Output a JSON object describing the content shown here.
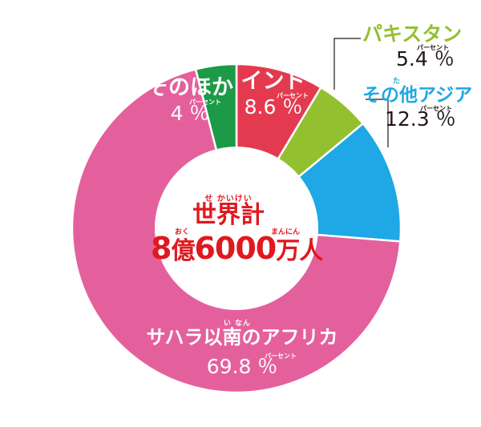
{
  "colors": {
    "sub_saharan": "#e4609c",
    "india": "#e43a4f",
    "pakistan": "#93c02f",
    "other_asia": "#1ea8e6",
    "other": "#1c9a48",
    "center_text": "#e0181f",
    "white": "#ffffff",
    "dark": "#231815"
  },
  "chart_data": {
    "type": "pie",
    "donut": true,
    "center": {
      "ruby": "せ かいけい",
      "title": "世界計",
      "total_prefix": "8",
      "oku": "億",
      "oku_ruby": "おく",
      "total_mid": "6000",
      "man_nin": "万人",
      "man_nin_ruby": "まんにん"
    },
    "unit_ruby": "パーセント",
    "unit": "％",
    "slices": [
      {
        "name": "サハラ以南のアフリカ",
        "ruby": "い なん",
        "value": 69.8,
        "value_text": "69.8 ％",
        "color": "#e4609c"
      },
      {
        "name": "インド",
        "ruby": "",
        "value": 8.6,
        "value_text": "8.6 ％",
        "color": "#e43a4f"
      },
      {
        "name": "パキスタン",
        "ruby": "",
        "value": 5.4,
        "value_text": "5.4 ％",
        "color": "#93c02f"
      },
      {
        "name": "その他アジア",
        "ruby": "た",
        "value": 12.3,
        "value_text": "12.3 ％",
        "color": "#1ea8e6"
      },
      {
        "name": "そのほか",
        "ruby": "",
        "value": 4,
        "value_text": "4 ％",
        "color": "#1c9a48"
      }
    ]
  }
}
